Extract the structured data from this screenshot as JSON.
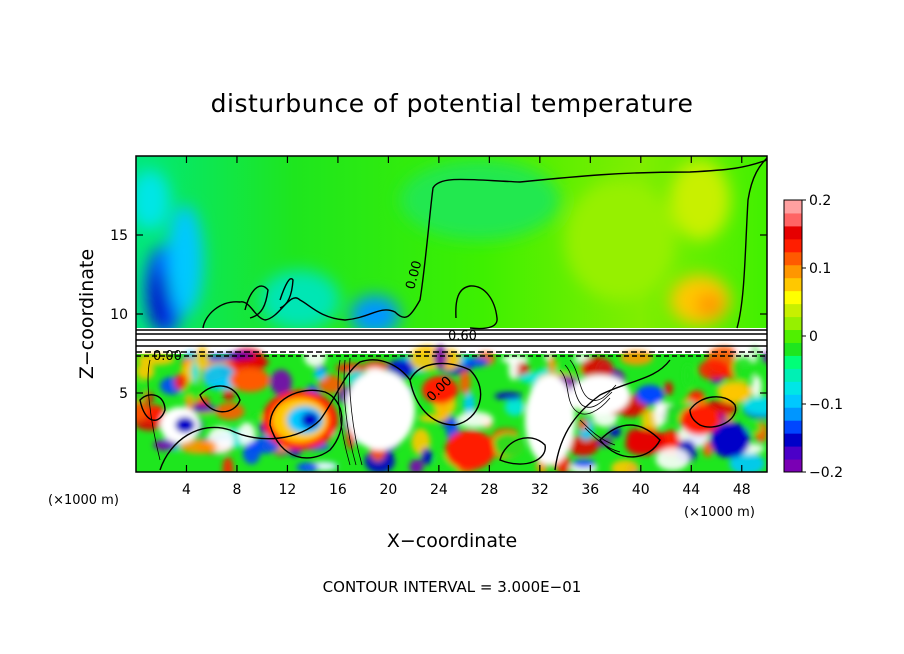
{
  "chart_data": {
    "type": "heatmap",
    "title": "disturbunce of potential temperature",
    "xlabel": "X−coordinate",
    "ylabel": "Z−coordinate",
    "x_unit": "(×1000 m)",
    "xlim": [
      0,
      50
    ],
    "ylim": [
      0,
      20
    ],
    "x_ticks": [
      4,
      8,
      12,
      16,
      20,
      24,
      28,
      32,
      36,
      40,
      44,
      48
    ],
    "y_ticks": [
      5,
      10,
      15
    ],
    "x_tick_labels": [
      "4",
      "8",
      "12",
      "16",
      "20",
      "24",
      "28",
      "32",
      "36",
      "40",
      "44",
      "48"
    ],
    "y_tick_labels": [
      "5",
      "10",
      "15"
    ],
    "colorbar": {
      "range": [
        -0.2,
        0.2
      ],
      "tick_labels": [
        "0.2",
        "0.1",
        "0",
        "−0.1",
        "−0.2"
      ],
      "tick_values": [
        0.2,
        0.1,
        0,
        -0.1,
        -0.2
      ],
      "colors": [
        "#7a00b4",
        "#4b00c8",
        "#0000c8",
        "#0046ff",
        "#0096ff",
        "#00c8ff",
        "#00e6e6",
        "#00f0b4",
        "#00ff78",
        "#1ee61e",
        "#50f000",
        "#96f000",
        "#c8f000",
        "#ffff00",
        "#ffc800",
        "#ff9600",
        "#ff5a00",
        "#ff1e00",
        "#e60000",
        "#ff6464",
        "#ffa0a0"
      ]
    },
    "contour_labels": [
      "0.00",
      "0.60",
      "0.00",
      "0.00"
    ],
    "contour_interval_note": "CONTOUR INTERVAL = 3.000E−01",
    "regions": {
      "upper_background_value": 0.0,
      "upper_left_min_value": -0.15,
      "upper_right_max_value": 0.1,
      "layer_base_km": 7.5,
      "layer_top_km": 9.0
    }
  }
}
